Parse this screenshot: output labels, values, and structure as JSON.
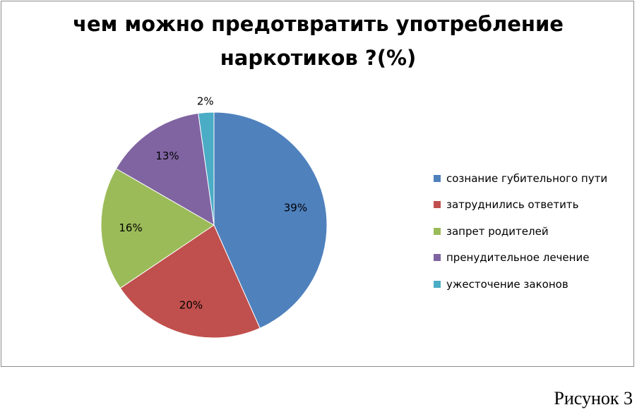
{
  "chart_data": {
    "type": "pie",
    "title": "чем можно предотвратить употребление наркотиков ?(%)",
    "title_lines": [
      "чем можно предотвратить употребление",
      "наркотиков ?(%)"
    ],
    "categories": [
      "сознание губительного пути",
      "затруднились ответить",
      "запрет родителей",
      "пренудительное лечение",
      "ужесточение законов"
    ],
    "values": [
      39,
      20,
      16,
      13,
      2
    ],
    "labels": [
      "39%",
      "20%",
      "16%",
      "13%",
      "2%"
    ],
    "colors": [
      "#4f81bd",
      "#c0504d",
      "#9bbb59",
      "#8064a2",
      "#4bacc6"
    ],
    "legend": "right"
  },
  "caption": "Рисунок 3"
}
